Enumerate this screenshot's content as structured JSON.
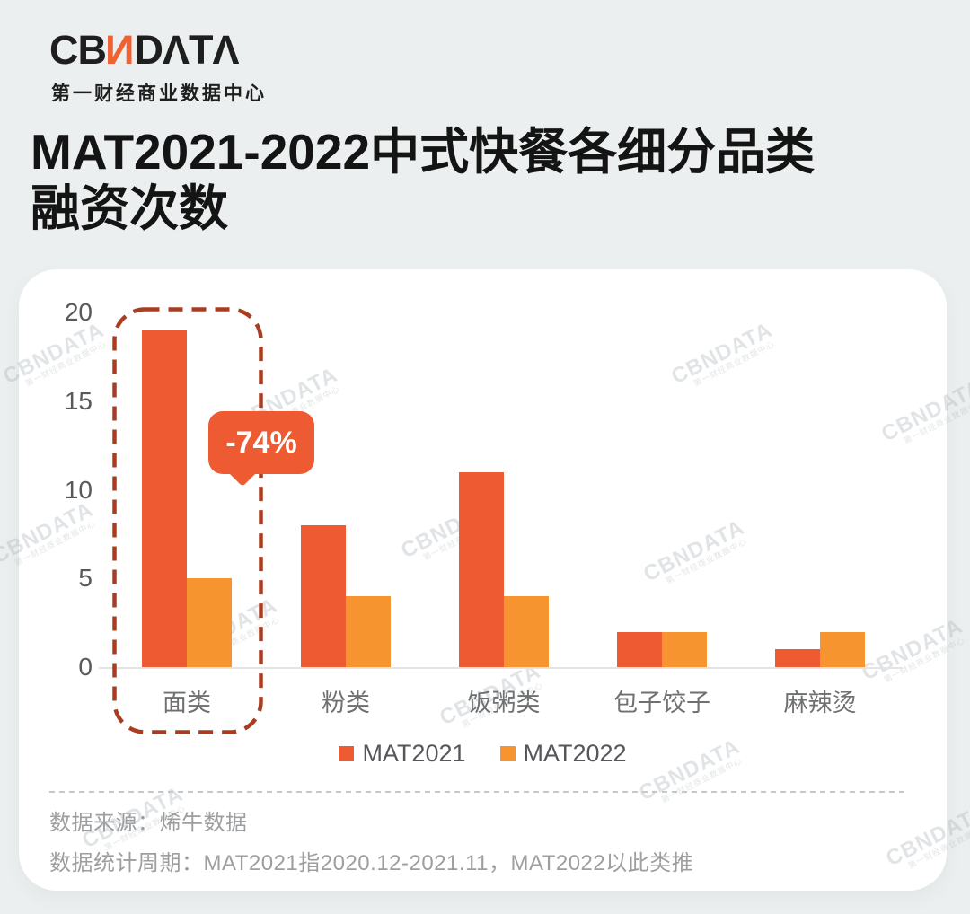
{
  "brand": {
    "logo_prefix": "CB",
    "logo_n": "N",
    "logo_suffix": "DΛTΛ",
    "subtitle": "第一财经商业数据中心"
  },
  "title": {
    "line1": "MAT2021-2022中式快餐各细分品类",
    "line2": "融资次数"
  },
  "chart_data": {
    "type": "bar",
    "title": "MAT2021-2022中式快餐各细分品类融资次数",
    "categories": [
      "面类",
      "粉类",
      "饭粥类",
      "包子饺子",
      "麻辣烫"
    ],
    "series": [
      {
        "name": "MAT2021",
        "color": "#EE5A31",
        "values": [
          19,
          8,
          11,
          2,
          1
        ]
      },
      {
        "name": "MAT2022",
        "color": "#F6952F",
        "values": [
          5,
          4,
          4,
          2,
          2
        ]
      }
    ],
    "xlabel": "",
    "ylabel": "",
    "ylim": [
      0,
      20
    ],
    "yticks": [
      0,
      5,
      10,
      15,
      20
    ],
    "grid": false,
    "legend_position": "bottom",
    "annotation": {
      "text": "-74%",
      "target_category": "面类"
    },
    "highlight": {
      "category": "面类",
      "style": "dashed-rounded-rect"
    }
  },
  "colors": {
    "highlight_border": "#A93D22",
    "bubble_bg": "#EE5A31",
    "axis_line": "#E3E4E4"
  },
  "watermark": {
    "text": "CBNDATA",
    "subtext": "第一财经商业数据中心"
  },
  "footer": {
    "source": "数据来源：烯牛数据",
    "period": "数据统计周期：MAT2021指2020.12-2021.11，MAT2022以此类推"
  }
}
